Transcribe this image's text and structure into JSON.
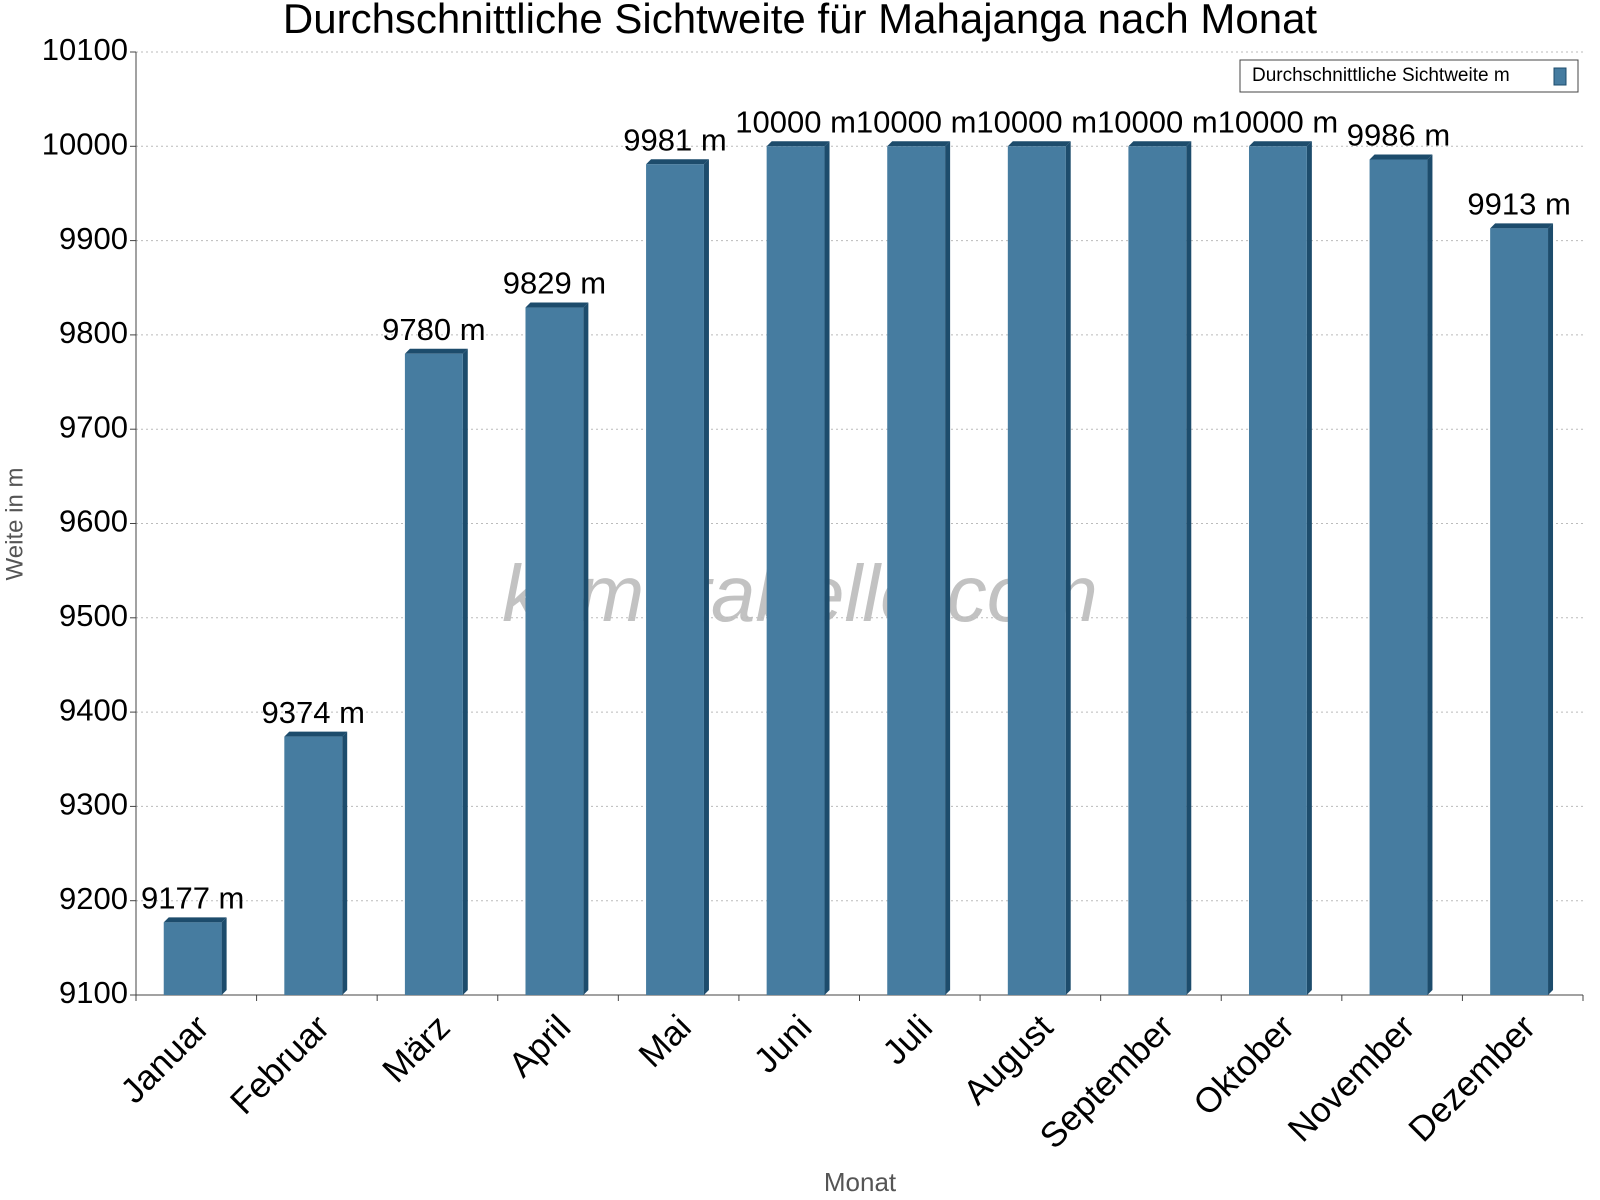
{
  "chart_data": {
    "type": "bar",
    "title": "Durchschnittliche Sichtweite für Mahajanga nach Monat",
    "watermark": "klimatabelle.com",
    "x_label": "Monat",
    "y_label": "Weite in m",
    "categories": [
      "Januar",
      "Februar",
      "März",
      "April",
      "Mai",
      "Juni",
      "Juli",
      "August",
      "September",
      "Oktober",
      "November",
      "Dezember"
    ],
    "series": [
      {
        "name": "Durchschnittliche Sichtweite m",
        "color": "#467ca0",
        "values": [
          9177,
          9374,
          9780,
          9829,
          9981,
          10000,
          10000,
          10000,
          10000,
          10000,
          9986,
          9913
        ],
        "value_labels": [
          "9177 m",
          "9374 m",
          "9780 m",
          "9829 m",
          "9981 m",
          "10000 m",
          "10000 m",
          "10000 m",
          "10000 m",
          "10000 m",
          "9986 m",
          "9913 m"
        ]
      }
    ],
    "ylim": [
      9100,
      10100
    ],
    "yticks": [
      9100,
      9200,
      9300,
      9400,
      9500,
      9600,
      9700,
      9800,
      9900,
      10000,
      10100
    ],
    "grid": true,
    "legend": "upper right"
  }
}
